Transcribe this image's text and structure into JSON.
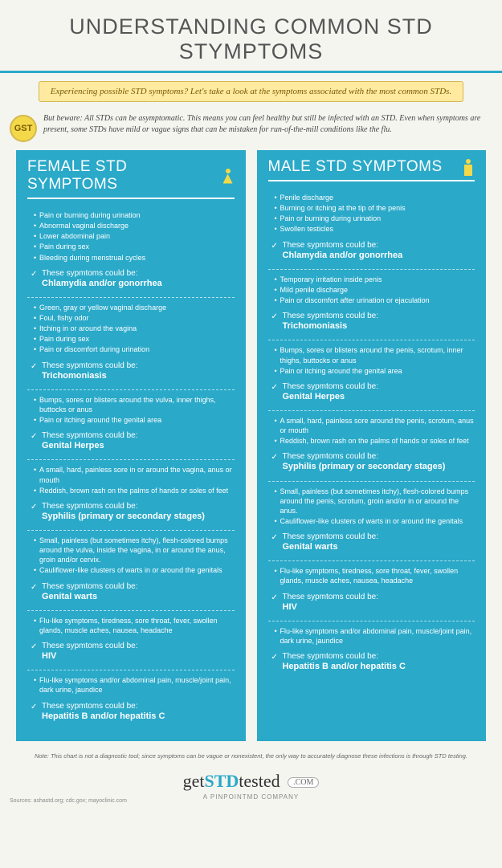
{
  "colors": {
    "panel": "#2aa9c9",
    "highlight": "#ffeaa0",
    "badge": "#f3d94a",
    "page_bg": "#f5f5f0"
  },
  "title": "UNDERSTANDING COMMON STD STYMPTOMS",
  "subtitle": "Experiencing possible STD symptoms? Let's take a look at the symptoms associated with the most common STDs.",
  "badge": "GST",
  "warning": "But beware: All STDs can be asymptomatic. This means you can feel healthy but still be infected with an STD. Even when symptoms are present, some STDs have mild or vague signs that can be mistaken for run-of-the-mill conditions like the flu.",
  "could_be_label": "These sypmtoms could be:",
  "female": {
    "heading": "FEMALE STD SYMPTOMS",
    "sections": [
      {
        "symptoms": [
          "Pain or burning during urination",
          "Abnormal vaginal discharge",
          "Lower abdominal pain",
          "Pain during sex",
          "Bleeding during menstrual cycles"
        ],
        "diagnosis": "Chlamydia and/or gonorrhea"
      },
      {
        "symptoms": [
          "Green, gray or yellow vaginal discharge",
          "Foul, fishy odor",
          "Itching in or around the vagina",
          "Pain during sex",
          "Pain or discomfort during urination"
        ],
        "diagnosis": "Trichomoniasis"
      },
      {
        "symptoms": [
          "Bumps, sores or blisters around the vulva, inner thighs, buttocks or anus",
          "Pain or itching around the genital area"
        ],
        "diagnosis": "Genital Herpes"
      },
      {
        "symptoms": [
          "A small, hard, painless sore in or around the vagina, anus or mouth",
          "Reddish, brown rash on the palms of hands or soles of feet"
        ],
        "diagnosis": "Syphilis (primary or secondary stages)"
      },
      {
        "symptoms": [
          "Small, painless (but sometimes itchy), flesh-colored bumps around the vulva, inside the vagina, in or around the anus, groin and/or cervix.",
          "Cauliflower-like clusters of warts in or around the genitals"
        ],
        "diagnosis": "Genital warts"
      },
      {
        "symptoms": [
          "Flu-like symptoms, tiredness, sore throat, fever, swollen glands, muscle aches, nausea, headache"
        ],
        "diagnosis": "HIV"
      },
      {
        "symptoms": [
          "Flu-like symptoms and/or abdominal pain, muscle/joint pain, dark urine, jaundice"
        ],
        "diagnosis": "Hepatitis B and/or hepatitis C"
      }
    ]
  },
  "male": {
    "heading": "MALE STD SYMPTOMS",
    "sections": [
      {
        "symptoms": [
          "Penile discharge",
          "Burning or itching at the tip of the penis",
          "Pain or burning during urination",
          "Swollen testicles"
        ],
        "diagnosis": "Chlamydia and/or gonorrhea"
      },
      {
        "symptoms": [
          "Temporary irritation inside penis",
          "Mild penile discharge",
          "Pain or discomfort after urination or ejaculation"
        ],
        "diagnosis": "Trichomoniasis"
      },
      {
        "symptoms": [
          "Bumps, sores or blisters around the penis, scrotum, inner thighs, buttocks or anus",
          "Pain or itching around the genital area"
        ],
        "diagnosis": "Genital Herpes"
      },
      {
        "symptoms": [
          "A small, hard, painless sore around the penis, scrotum, anus or mouth",
          "Reddish, brown rash on the palms of hands or soles of feet"
        ],
        "diagnosis": "Syphilis (primary or secondary stages)"
      },
      {
        "symptoms": [
          "Small, painless (but sometimes itchy), flesh-colored bumps around the penis, scrotum, groin and/or in or around the anus.",
          "Cauliflower-like clusters of warts in or around the genitals"
        ],
        "diagnosis": "Genital warts"
      },
      {
        "symptoms": [
          "Flu-like symptoms, tiredness, sore throat, fever, swollen glands, muscle aches, nausea, headache"
        ],
        "diagnosis": "HIV"
      },
      {
        "symptoms": [
          "Flu-like symptoms and/or abdominal pain, muscle/joint pain, dark urine, jaundice"
        ],
        "diagnosis": "Hepatitis B and/or hepatitis C"
      }
    ]
  },
  "note": "Note: This chart is not a diagnostic tool; since symptoms can be vague or nonexistent, the only way to accurately diagnose these infections is through STD testing.",
  "footer": {
    "brand_pre": "get",
    "brand_mid": "STD",
    "brand_post": "tested",
    "dotcom": ".COM",
    "tagline": "A PinpointMD Company"
  },
  "sources": "Sources: ashastd.org; cdc.gov; mayoclinic.com"
}
